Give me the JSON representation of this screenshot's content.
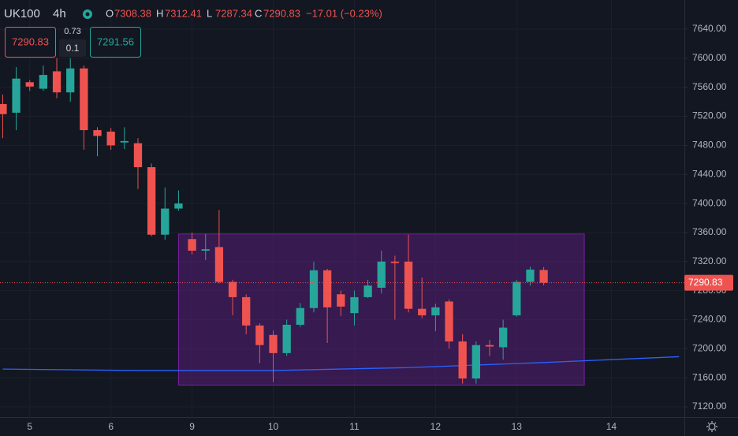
{
  "header": {
    "symbol": "UK100",
    "interval": "4h",
    "labels": [
      "O",
      "H",
      "L",
      "C"
    ],
    "change": "−17.01 (−0.23%)"
  },
  "trade_panel": {
    "sell": "7290.83",
    "spread": "0.73",
    "size": "0.1",
    "buy": "7291.56"
  },
  "chart_data": {
    "type": "candlestick",
    "up_color": "#26a69a",
    "down_color": "#ef5350",
    "open": [
      7537,
      7525,
      7567,
      7558,
      7582,
      7553,
      7586,
      7501,
      7499,
      7484,
      7483,
      7450,
      7357,
      7393,
      7351,
      7335,
      7340,
      7292,
      7271,
      7232,
      7219,
      7194,
      7233,
      7256,
      7308,
      7275,
      7249,
      7271,
      7284,
      7320,
      7320,
      7255,
      7246,
      7265,
      7210,
      7159,
      7205,
      7202,
      7246,
      7292,
      7308.38
    ],
    "high": [
      7550,
      7588,
      7570,
      7590,
      7600,
      7600,
      7590,
      7505,
      7504,
      7505,
      7490,
      7455,
      7422,
      7418,
      7360,
      7358,
      7391,
      7295,
      7275,
      7235,
      7225,
      7240,
      7263,
      7320,
      7310,
      7280,
      7280,
      7295,
      7335,
      7328,
      7357,
      7298,
      7262,
      7268,
      7220,
      7210,
      7212,
      7240,
      7295,
      7313,
      7312.41
    ],
    "low": [
      7490,
      7501,
      7555,
      7555,
      7545,
      7540,
      7474,
      7465,
      7474,
      7475,
      7420,
      7355,
      7350,
      7390,
      7330,
      7322,
      7290,
      7246,
      7220,
      7180,
      7154,
      7190,
      7230,
      7250,
      7208,
      7245,
      7232,
      7270,
      7276,
      7240,
      7250,
      7242,
      7224,
      7200,
      7152,
      7152,
      7190,
      7185,
      7244,
      7287,
      7287.34
    ],
    "close": [
      7523,
      7572,
      7561,
      7577,
      7553,
      7586,
      7501,
      7493,
      7480,
      7486,
      7450,
      7357,
      7393,
      7400,
      7335,
      7337,
      7292,
      7271,
      7232,
      7205,
      7194,
      7233,
      7256,
      7308,
      7257,
      7258,
      7271,
      7287,
      7320,
      7318,
      7255,
      7246,
      7257,
      7210,
      7159,
      7205,
      7203,
      7229,
      7292,
      7309,
      7290.83
    ],
    "last_price_label": "7290.83",
    "ma": {
      "color": "#2962ff",
      "x": [
        0,
        10,
        20,
        30,
        40,
        50
      ],
      "values": [
        7172,
        7170,
        7170,
        7174,
        7181,
        7189
      ]
    },
    "range_box": {
      "x": [
        13,
        43
      ],
      "y": [
        7150,
        7358
      ]
    },
    "xlim": [
      -0.2,
      50.4
    ],
    "ylim": [
      7104.8,
      7680.2
    ],
    "xticks": [
      {
        "value": 2,
        "label": "5"
      },
      {
        "value": 8,
        "label": "6"
      },
      {
        "value": 14,
        "label": "9"
      },
      {
        "value": 20,
        "label": "10"
      },
      {
        "value": 26,
        "label": "11"
      },
      {
        "value": 32,
        "label": "12"
      },
      {
        "value": 38,
        "label": "13"
      },
      {
        "value": 45,
        "label": "14"
      }
    ],
    "yticks": [
      {
        "value": 7120,
        "label": "7120.00"
      },
      {
        "value": 7160,
        "label": "7160.00"
      },
      {
        "value": 7200,
        "label": "7200.00"
      },
      {
        "value": 7240,
        "label": "7240.00"
      },
      {
        "value": 7280,
        "label": "7280.00"
      },
      {
        "value": 7320,
        "label": "7320.00"
      },
      {
        "value": 7360,
        "label": "7360.00"
      },
      {
        "value": 7400,
        "label": "7400.00"
      },
      {
        "value": 7440,
        "label": "7440.00"
      },
      {
        "value": 7480,
        "label": "7480.00"
      },
      {
        "value": 7520,
        "label": "7520.00"
      },
      {
        "value": 7560,
        "label": "7560.00"
      },
      {
        "value": 7600,
        "label": "7600.00"
      },
      {
        "value": 7640,
        "label": "7640.00"
      }
    ],
    "grid": true
  }
}
